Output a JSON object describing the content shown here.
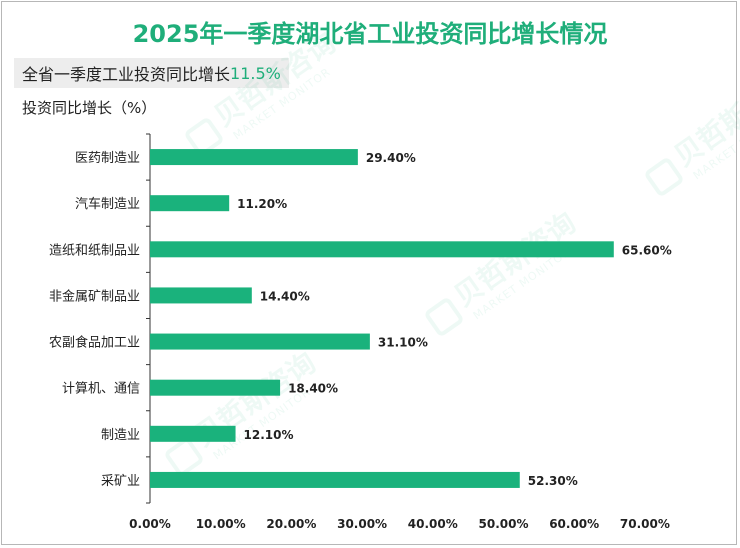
{
  "header": {
    "title": "2025年一季度湖北省工业投资同比增长情况",
    "summary_label": "全省一季度工业投资同比增长",
    "summary_value": "11.5%",
    "unit_label": "投资同比增长（%）"
  },
  "colors": {
    "bar": "#1ab27c",
    "title": "#1fae7a",
    "axis": "#333333"
  },
  "chart_data": {
    "type": "bar",
    "orientation": "horizontal",
    "title": "2025年一季度湖北省工业投资同比增长情况",
    "xlabel": "",
    "ylabel": "投资同比增长（%）",
    "categories": [
      "医药制造业",
      "汽车制造业",
      "造纸和纸制品业",
      "非金属矿制品业",
      "农副食品加工业",
      "计算机、通信",
      "制造业",
      "采矿业"
    ],
    "values": [
      29.4,
      11.2,
      65.6,
      14.4,
      31.1,
      18.4,
      12.1,
      52.3
    ],
    "value_labels": [
      "29.40%",
      "11.20%",
      "65.60%",
      "14.40%",
      "31.10%",
      "18.40%",
      "12.10%",
      "52.30%"
    ],
    "xlim": [
      0,
      70
    ],
    "x_ticks": [
      "0.00%",
      "10.00%",
      "20.00%",
      "30.00%",
      "40.00%",
      "50.00%",
      "60.00%",
      "70.00%"
    ],
    "grid": false,
    "legend": "none"
  },
  "watermark": {
    "brand": "贝哲斯咨询",
    "sub": "MARKET MONITOR"
  }
}
